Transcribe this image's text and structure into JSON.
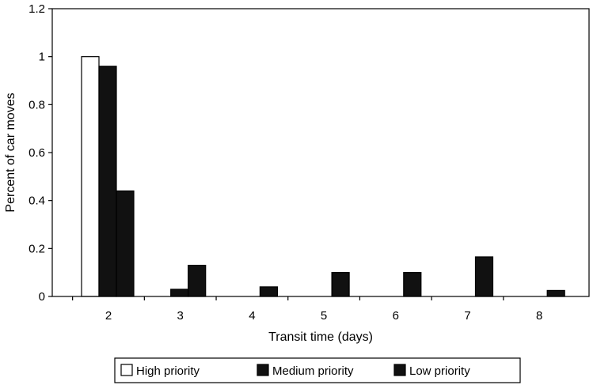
{
  "chart_data": {
    "type": "bar",
    "title": "",
    "xlabel": "Transit time (days)",
    "ylabel": "Percent of car moves",
    "categories": [
      "2",
      "3",
      "4",
      "5",
      "6",
      "7",
      "8"
    ],
    "ylim": [
      0,
      1.2
    ],
    "yticks": [
      "0",
      "0.2",
      "0.4",
      "0.6",
      "0.8",
      "1",
      "1.2"
    ],
    "grid": false,
    "legend_position": "bottom",
    "series": [
      {
        "name": "High priority",
        "values": [
          1.0,
          0,
          0,
          0,
          0,
          0,
          0
        ],
        "color": "#ffffff"
      },
      {
        "name": "Medium priority",
        "values": [
          0.96,
          0.03,
          0,
          0,
          0,
          0,
          0
        ],
        "color": "#111111"
      },
      {
        "name": "Low priority",
        "values": [
          0.44,
          0.13,
          0.04,
          0.1,
          0.1,
          0.165,
          0.025
        ],
        "color": "#111111"
      }
    ]
  }
}
